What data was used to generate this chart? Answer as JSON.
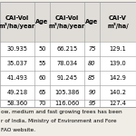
{
  "headers_row1": [
    "CAI-Vol",
    "Age",
    "CAI-Vol",
    "Age",
    "CAI-Vol"
  ],
  "headers_row2": [
    "m³/ha/year",
    "",
    "m³/ha/year",
    "",
    "m³/ha/…"
  ],
  "col1_val": [
    30.935,
    35.037,
    41.493,
    49.218,
    58.36
  ],
  "col1_age": [
    50,
    55,
    60,
    65,
    70
  ],
  "col2_val": [
    66.215,
    78.034,
    91.245,
    105.386,
    116.06
  ],
  "col2_age": [
    75,
    80,
    85,
    90,
    95
  ],
  "col3_val": [
    129.1,
    139.0,
    142.9,
    140.2,
    127.4
  ],
  "footer_lines": [
    "ow, medium and fast growing trees has been",
    "r of India, Ministry of Environment and Fore",
    "FAO website."
  ],
  "bg_color": "#f0ede6",
  "table_bg": "#ffffff",
  "border_color": "#999999",
  "font_size": 4.8,
  "header_font_size": 4.8,
  "footer_font_size": 4.2
}
